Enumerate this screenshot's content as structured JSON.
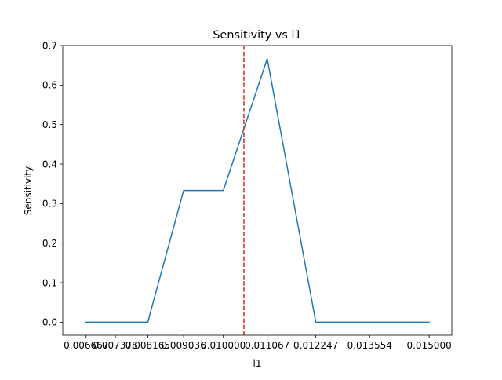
{
  "chart_data": {
    "type": "line",
    "title": "Sensitivity vs l1",
    "xlabel": "l1",
    "ylabel": "Sensitivity",
    "xlim": [
      0.0061,
      0.01555
    ],
    "ylim": [
      -0.033,
      0.7
    ],
    "x_ticks": [
      0.006667,
      0.007378,
      0.008165,
      0.009036,
      0.01,
      0.011067,
      0.012247,
      0.013554,
      0.015
    ],
    "x_tick_labels": [
      "0.006667",
      "0.007378",
      "0.008165",
      "0.009036",
      "0.010000",
      "0.011067",
      "0.012247",
      "0.013554",
      "0.015000"
    ],
    "y_ticks": [
      0.0,
      0.1,
      0.2,
      0.3,
      0.4,
      0.5,
      0.6,
      0.7
    ],
    "y_tick_labels": [
      "0.0",
      "0.1",
      "0.2",
      "0.3",
      "0.4",
      "0.5",
      "0.6",
      "0.7"
    ],
    "grid": false,
    "series": [
      {
        "color": "#1f77b4",
        "x": [
          0.006667,
          0.007378,
          0.008165,
          0.009036,
          0.01,
          0.011067,
          0.012247,
          0.013554,
          0.015
        ],
        "y": [
          0.0,
          0.0,
          0.0,
          0.3333,
          0.3333,
          0.6667,
          0.0,
          0.0,
          0.0
        ]
      }
    ],
    "vlines": [
      {
        "x": 0.0105,
        "color": "#d62728",
        "style": "dashed"
      }
    ]
  }
}
